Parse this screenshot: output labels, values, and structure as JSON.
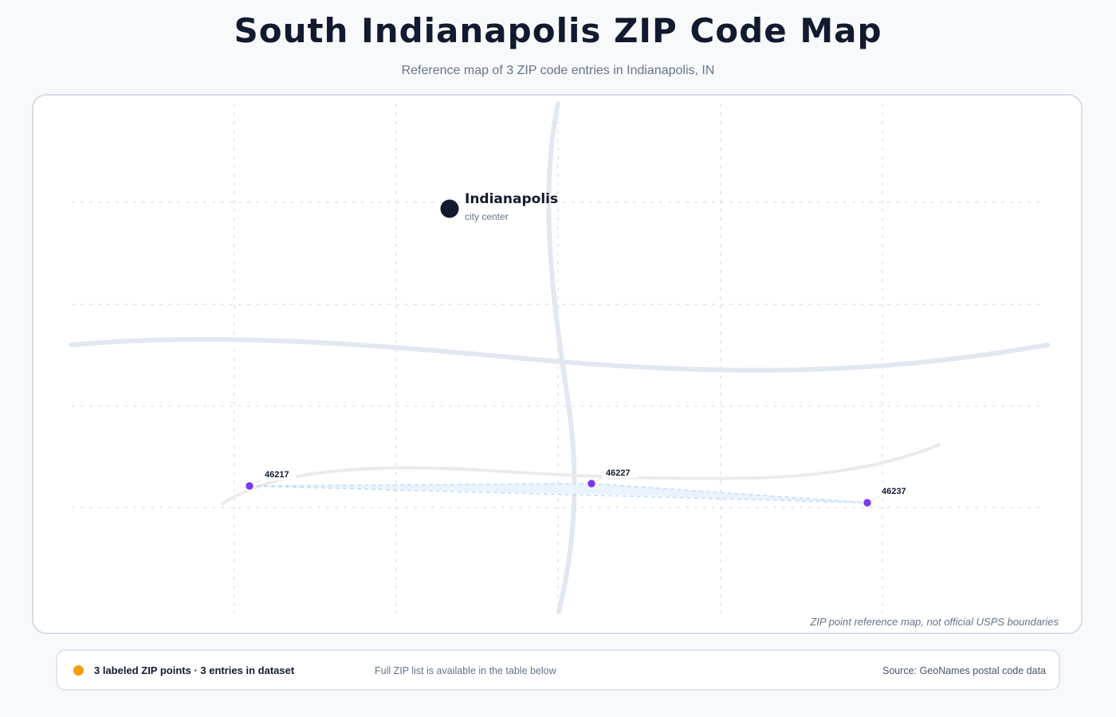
{
  "header": {
    "title": "South Indianapolis ZIP Code Map",
    "subtitle": "Reference map of 3 ZIP code entries in Indianapolis, IN"
  },
  "map": {
    "city": {
      "name": "Indianapolis",
      "sublabel": "city center"
    },
    "zip_points": [
      {
        "zip": "46217"
      },
      {
        "zip": "46227"
      },
      {
        "zip": "46237"
      }
    ],
    "note": "ZIP point reference map, not official USPS boundaries",
    "colors": {
      "zip_point": "#7c3aed",
      "city_marker": "#111a2e",
      "road": "#e2e8f0",
      "connector": "#bfdbfe"
    }
  },
  "footer": {
    "legend_label": "3 labeled ZIP points · 3 entries in dataset",
    "legend_color": "#f59e0b",
    "middle_text": "Full ZIP list is available in the table below",
    "source": "Source: GeoNames postal code data"
  }
}
